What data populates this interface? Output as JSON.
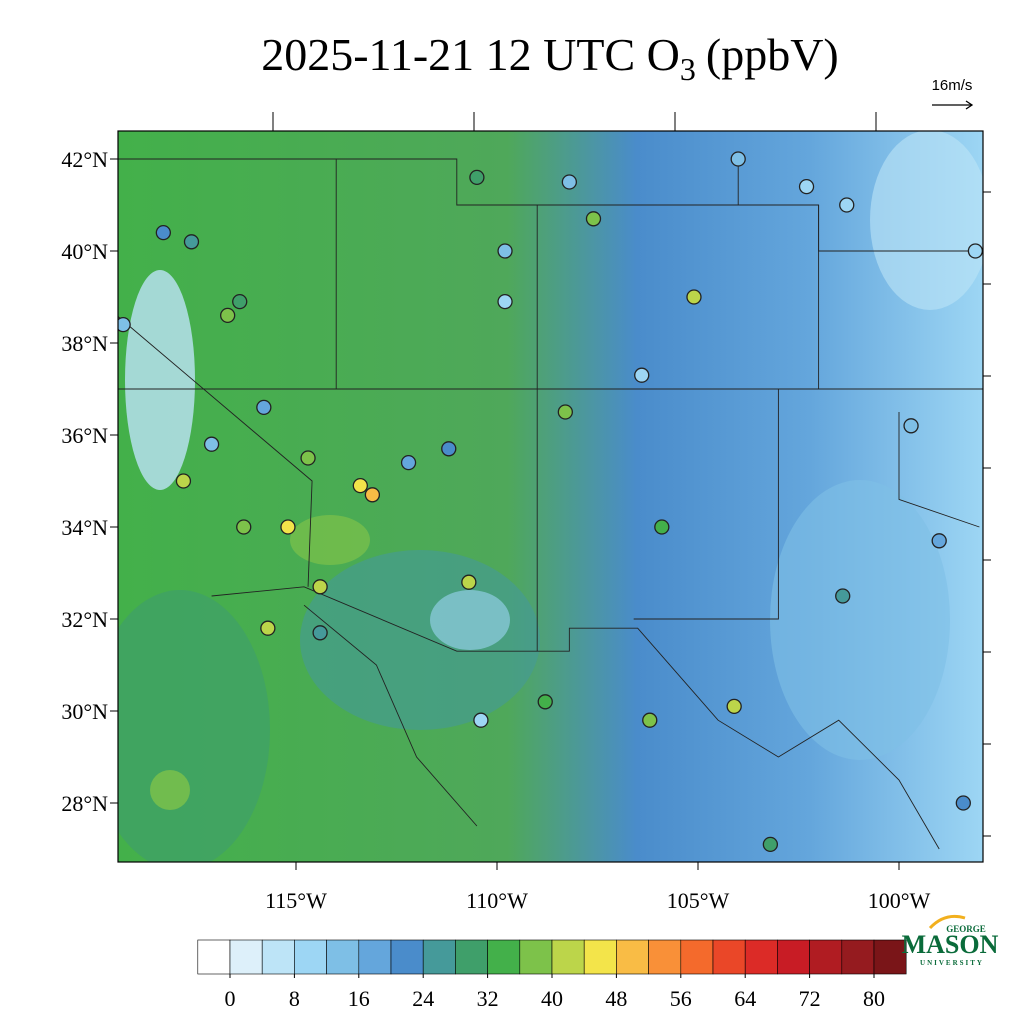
{
  "map": {
    "title": {
      "main": "2025-11-21 12 UTC O",
      "subscript": "3",
      "units": "(ppbV)"
    },
    "wind_reference": "16m/s",
    "lat_ticks": [
      {
        "value": 42,
        "label": "42°N"
      },
      {
        "value": 40,
        "label": "40°N"
      },
      {
        "value": 38,
        "label": "38°N"
      },
      {
        "value": 36,
        "label": "36°N"
      },
      {
        "value": 34,
        "label": "34°N"
      },
      {
        "value": 32,
        "label": "32°N"
      },
      {
        "value": 30,
        "label": "30°N"
      },
      {
        "value": 28,
        "label": "28°N"
      }
    ],
    "lon_ticks": [
      {
        "value": -115,
        "label": "115°W"
      },
      {
        "value": -110,
        "label": "110°W"
      },
      {
        "value": -105,
        "label": "105°W"
      },
      {
        "value": -100,
        "label": "100°W"
      }
    ],
    "colorbar": {
      "lim": [
        -4,
        84
      ],
      "step": 4,
      "ticks": [
        0,
        8,
        16,
        24,
        32,
        40,
        48,
        56,
        64,
        72,
        80
      ],
      "colors": [
        "#ffffff",
        "#ddf0fa",
        "#bde4f7",
        "#9dd6f4",
        "#7ebfe6",
        "#64a6dc",
        "#4a8ccb",
        "#459a9a",
        "#3f9f6a",
        "#43b04a",
        "#7dc24a",
        "#bcd54a",
        "#f3e44a",
        "#f9bc45",
        "#f99038",
        "#f46a2c",
        "#ea4728",
        "#dc2b27",
        "#c81c25",
        "#b01c22",
        "#951b1f",
        "#7a1518"
      ]
    },
    "stations": [
      {
        "lon": -119.3,
        "lat": 38.4,
        "value": 12
      },
      {
        "lon": -118.3,
        "lat": 40.4,
        "value": 22
      },
      {
        "lon": -117.6,
        "lat": 40.2,
        "value": 26
      },
      {
        "lon": -116.7,
        "lat": 38.6,
        "value": 36
      },
      {
        "lon": -116.4,
        "lat": 38.9,
        "value": 28
      },
      {
        "lon": -115.8,
        "lat": 36.6,
        "value": 18
      },
      {
        "lon": -114.7,
        "lat": 35.5,
        "value": 36
      },
      {
        "lon": -113.4,
        "lat": 34.9,
        "value": 44
      },
      {
        "lon": -113.1,
        "lat": 34.7,
        "value": 48
      },
      {
        "lon": -110.5,
        "lat": 41.6,
        "value": 28
      },
      {
        "lon": -109.8,
        "lat": 40.0,
        "value": 12
      },
      {
        "lon": -109.8,
        "lat": 38.9,
        "value": 10
      },
      {
        "lon": -108.2,
        "lat": 41.5,
        "value": 12
      },
      {
        "lon": -107.6,
        "lat": 40.7,
        "value": 38
      },
      {
        "lon": -105.1,
        "lat": 39.0,
        "value": 40
      },
      {
        "lon": -104.0,
        "lat": 42.0,
        "value": 12
      },
      {
        "lon": -102.3,
        "lat": 41.4,
        "value": 8
      },
      {
        "lon": -101.3,
        "lat": 41.0,
        "value": 10
      },
      {
        "lon": -98.1,
        "lat": 40.0,
        "value": 8
      },
      {
        "lon": -99.7,
        "lat": 36.2,
        "value": 12
      },
      {
        "lon": -99.0,
        "lat": 33.7,
        "value": 16
      },
      {
        "lon": -101.4,
        "lat": 32.5,
        "value": 24
      },
      {
        "lon": -110.7,
        "lat": 32.8,
        "value": 40
      },
      {
        "lon": -110.4,
        "lat": 29.8,
        "value": 8
      },
      {
        "lon": -108.8,
        "lat": 30.2,
        "value": 32
      },
      {
        "lon": -106.2,
        "lat": 29.8,
        "value": 36
      },
      {
        "lon": -104.1,
        "lat": 30.1,
        "value": 40
      },
      {
        "lon": -103.2,
        "lat": 27.1,
        "value": 28
      },
      {
        "lon": -108.3,
        "lat": 36.5,
        "value": 36
      },
      {
        "lon": -106.4,
        "lat": 37.3,
        "value": 10
      },
      {
        "lon": -105.9,
        "lat": 34.0,
        "value": 34
      },
      {
        "lon": -116.3,
        "lat": 34.0,
        "value": 38
      },
      {
        "lon": -115.2,
        "lat": 34.0,
        "value": 44
      },
      {
        "lon": -114.4,
        "lat": 32.7,
        "value": 42
      },
      {
        "lon": -115.7,
        "lat": 31.8,
        "value": 40
      },
      {
        "lon": -114.4,
        "lat": 31.7,
        "value": 24
      },
      {
        "lon": -117.8,
        "lat": 35.0,
        "value": 40
      },
      {
        "lon": -117.1,
        "lat": 35.8,
        "value": 12
      },
      {
        "lon": -112.2,
        "lat": 35.4,
        "value": 16
      },
      {
        "lon": -111.2,
        "lat": 35.7,
        "value": 22
      },
      {
        "lon": -98.4,
        "lat": 28.0,
        "value": 20
      }
    ],
    "logo": {
      "top": "GEORGE",
      "name": "MASON",
      "bottom": "UNIVERSITY"
    }
  }
}
